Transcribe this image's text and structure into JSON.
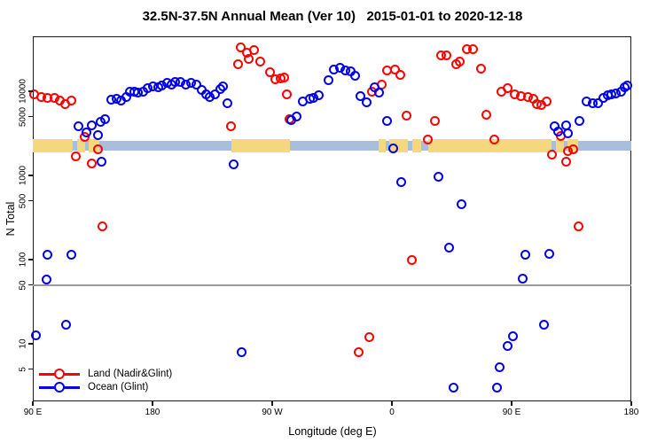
{
  "title": "32.5N-37.5N Annual Mean (Ver 10)   2015-01-01 to 2020-12-18",
  "colors": {
    "land_series": "#ff0000",
    "ocean_series": "#0000ee",
    "land_strip": "#f5d87d",
    "ocean_strip": "#a8bedc",
    "reference_line": "#9a9a9a",
    "axis": "#1a1a1a"
  },
  "legend": {
    "items": [
      {
        "label": "Land (Nadir&Glint)",
        "color": "#ff0000"
      },
      {
        "label": "Ocean (Glint)",
        "color": "#0000ee"
      }
    ]
  },
  "chart_data": {
    "type": "scatter",
    "title": "32.5N-37.5N Annual Mean (Ver 10)   2015-01-01 to 2020-12-18",
    "xlabel": "Longitude (deg E)",
    "ylabel": "N Total",
    "x_range": [
      90,
      540
    ],
    "y_range": [
      2.07,
      45000
    ],
    "y_scale": "log",
    "grid": "off",
    "reference_line_y": 50,
    "x_ticks": [
      {
        "x": 90,
        "label": "90 E"
      },
      {
        "x": 180,
        "label": "180"
      },
      {
        "x": 270,
        "label": "90 W"
      },
      {
        "x": 360,
        "label": "0"
      },
      {
        "x": 450,
        "label": "90 E"
      },
      {
        "x": 540,
        "label": "180"
      }
    ],
    "y_ticks": [
      10000,
      5000,
      1000,
      500,
      100,
      50,
      10,
      5
    ],
    "land_ocean_strip": {
      "description": "land/ocean indicator band along longitude",
      "value_range": [
        1900,
        2700
      ],
      "segments": [
        {
          "from": 90,
          "to": 120,
          "type": "land"
        },
        {
          "from": 120,
          "to": 123,
          "type": "ocean"
        },
        {
          "from": 123,
          "to": 129,
          "type": "land"
        },
        {
          "from": 129,
          "to": 132,
          "type": "ocean"
        },
        {
          "from": 132,
          "to": 140,
          "type": "land"
        },
        {
          "from": 140,
          "to": 239,
          "type": "ocean"
        },
        {
          "from": 239,
          "to": 283,
          "type": "land"
        },
        {
          "from": 283,
          "to": 350,
          "type": "ocean"
        },
        {
          "from": 350,
          "to": 355,
          "type": "land"
        },
        {
          "from": 355,
          "to": 358,
          "type": "ocean"
        },
        {
          "from": 358,
          "to": 372,
          "type": "land"
        },
        {
          "from": 372,
          "to": 375,
          "type": "ocean"
        },
        {
          "from": 375,
          "to": 382,
          "type": "land"
        },
        {
          "from": 382,
          "to": 387,
          "type": "ocean"
        },
        {
          "from": 387,
          "to": 480,
          "type": "land"
        },
        {
          "from": 480,
          "to": 483,
          "type": "ocean"
        },
        {
          "from": 483,
          "to": 489,
          "type": "land"
        },
        {
          "from": 489,
          "to": 492,
          "type": "ocean"
        },
        {
          "from": 492,
          "to": 500,
          "type": "land"
        },
        {
          "from": 500,
          "to": 540,
          "type": "ocean"
        }
      ]
    },
    "series": [
      {
        "name": "Land (Nadir&Glint)",
        "color": "#ff0000",
        "points": [
          [
            91,
            9300
          ],
          [
            96,
            8600
          ],
          [
            101,
            8300
          ],
          [
            106,
            8300
          ],
          [
            110,
            7800
          ],
          [
            114,
            7000
          ],
          [
            119,
            7800
          ],
          [
            122,
            1700
          ],
          [
            129,
            2900
          ],
          [
            134,
            1400
          ],
          [
            139,
            2050
          ],
          [
            142,
            250
          ],
          [
            239,
            3800
          ],
          [
            244,
            21000
          ],
          [
            246,
            33000
          ],
          [
            251,
            29000
          ],
          [
            252,
            24000
          ],
          [
            256,
            31000
          ],
          [
            261,
            22500
          ],
          [
            268,
            17000
          ],
          [
            272,
            14000
          ],
          [
            276,
            14300
          ],
          [
            279,
            14500
          ],
          [
            281,
            9200
          ],
          [
            283,
            4700
          ],
          [
            335,
            8
          ],
          [
            343,
            12
          ],
          [
            345,
            10000
          ],
          [
            352,
            12000
          ],
          [
            356,
            17500
          ],
          [
            362,
            18200
          ],
          [
            366,
            15500
          ],
          [
            371,
            5200
          ],
          [
            375,
            100
          ],
          [
            387,
            2650
          ],
          [
            392,
            4400
          ],
          [
            397,
            27000
          ],
          [
            401,
            26500
          ],
          [
            408,
            21000
          ],
          [
            411,
            22600
          ],
          [
            416,
            32000
          ],
          [
            421,
            31500
          ],
          [
            427,
            18500
          ],
          [
            431,
            5300
          ],
          [
            437,
            2650
          ],
          [
            442,
            9800
          ],
          [
            447,
            10800
          ],
          [
            452,
            9200
          ],
          [
            457,
            8800
          ],
          [
            462,
            8500
          ],
          [
            466,
            8100
          ],
          [
            469,
            7050
          ],
          [
            472,
            6800
          ],
          [
            476,
            7650
          ],
          [
            480,
            1750
          ],
          [
            487,
            2950
          ],
          [
            491,
            1450
          ],
          [
            492,
            1950
          ],
          [
            496,
            2050
          ],
          [
            500,
            250
          ]
        ]
      },
      {
        "name": "Ocean (Glint)",
        "color": "#0000ee",
        "points": [
          [
            92,
            12.5
          ],
          [
            100,
            58
          ],
          [
            101,
            115
          ],
          [
            115,
            17
          ],
          [
            119,
            115
          ],
          [
            124,
            3800
          ],
          [
            130,
            3250
          ],
          [
            134,
            3900
          ],
          [
            139,
            3000
          ],
          [
            141,
            4350
          ],
          [
            144,
            4700
          ],
          [
            141.5,
            1450
          ],
          [
            149,
            7950
          ],
          [
            153,
            8050
          ],
          [
            156,
            7800
          ],
          [
            160,
            8450
          ],
          [
            163,
            9900
          ],
          [
            166,
            10000
          ],
          [
            169,
            9700
          ],
          [
            173,
            9900
          ],
          [
            176,
            10900
          ],
          [
            180,
            11400
          ],
          [
            184,
            11200
          ],
          [
            187,
            11600
          ],
          [
            191,
            12600
          ],
          [
            194,
            12100
          ],
          [
            197,
            12800
          ],
          [
            201,
            12900
          ],
          [
            205,
            12100
          ],
          [
            209,
            12600
          ],
          [
            213,
            11900
          ],
          [
            217,
            10300
          ],
          [
            220,
            9200
          ],
          [
            223,
            8450
          ],
          [
            227,
            9200
          ],
          [
            231,
            10600
          ],
          [
            233,
            11400
          ],
          [
            236,
            7150
          ],
          [
            241,
            1370
          ],
          [
            247,
            8
          ],
          [
            284,
            4600
          ],
          [
            288,
            5000
          ],
          [
            293,
            7500
          ],
          [
            298,
            8050
          ],
          [
            301,
            8400
          ],
          [
            305,
            8900
          ],
          [
            312,
            13400
          ],
          [
            316,
            18200
          ],
          [
            321,
            18900
          ],
          [
            325,
            17900
          ],
          [
            329,
            17100
          ],
          [
            332,
            15300
          ],
          [
            336,
            8800
          ],
          [
            341,
            7350
          ],
          [
            347,
            11300
          ],
          [
            350,
            9700
          ],
          [
            356,
            4450
          ],
          [
            361,
            2100
          ],
          [
            367,
            830
          ],
          [
            395,
            960
          ],
          [
            403,
            140
          ],
          [
            406,
            3
          ],
          [
            412,
            460
          ],
          [
            439,
            3
          ],
          [
            441,
            5.3
          ],
          [
            447,
            9.5
          ],
          [
            451,
            12.4
          ],
          [
            458,
            59
          ],
          [
            460,
            114
          ],
          [
            474,
            17
          ],
          [
            478,
            117
          ],
          [
            482,
            3800
          ],
          [
            485,
            3300
          ],
          [
            491,
            3900
          ],
          [
            492,
            3200
          ],
          [
            501,
            4400
          ],
          [
            506,
            7650
          ],
          [
            511,
            7150
          ],
          [
            515,
            7250
          ],
          [
            519,
            8300
          ],
          [
            522,
            8950
          ],
          [
            525,
            9200
          ],
          [
            528,
            9500
          ],
          [
            532,
            9900
          ],
          [
            535,
            11200
          ],
          [
            537,
            11600
          ]
        ]
      }
    ]
  }
}
